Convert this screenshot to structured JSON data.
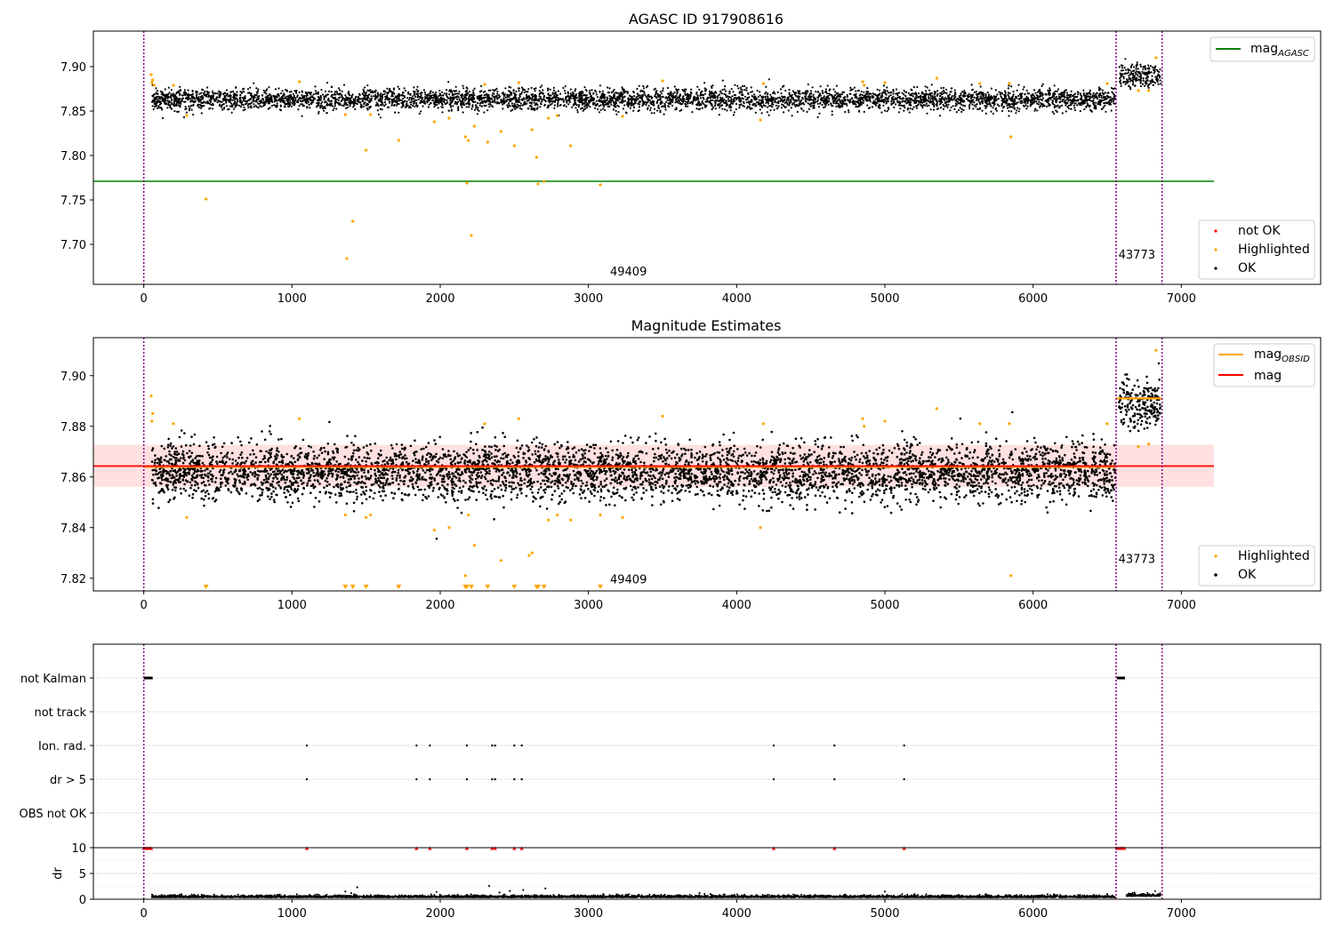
{
  "chart_data": [
    {
      "type": "scatter",
      "title": "AGASC ID 917908616",
      "xlim": [
        -340,
        7940
      ],
      "ylim": [
        7.655,
        7.94
      ],
      "xticks": [
        0,
        1000,
        2000,
        3000,
        4000,
        5000,
        6000,
        7000
      ],
      "yticks": [
        7.7,
        7.75,
        7.8,
        7.85,
        7.9
      ],
      "ytick_labels": [
        "7.70",
        "7.75",
        "7.80",
        "7.85",
        "7.90"
      ],
      "grid": false,
      "legend_upper": {
        "position": "top-right",
        "entries": [
          {
            "base": "mag",
            "sub": "AGASC",
            "color": "#008000"
          }
        ]
      },
      "legend_lower": {
        "position": "bottom-right",
        "entries": [
          {
            "label": "not OK",
            "color": "#ff0000"
          },
          {
            "label": "Highlighted",
            "color": "#ffa500"
          },
          {
            "label": "OK",
            "color": "#000000"
          }
        ]
      },
      "lines": [
        {
          "name": "mag_AGASC",
          "y": 7.771,
          "x": [
            -340,
            7220
          ],
          "color": "#008000"
        }
      ],
      "vlines": [
        0,
        6560,
        6870
      ],
      "obsid_labels": [
        {
          "text": "49409",
          "x": 3270,
          "y": 7.665
        },
        {
          "text": "43773",
          "x": 6700,
          "y": 7.684
        }
      ],
      "segments": [
        {
          "x": [
            55,
            6555
          ],
          "center": 7.863,
          "spread": 0.006,
          "trend": 0
        },
        {
          "x": [
            6580,
            6860
          ],
          "center": 7.889,
          "spread": 0.007,
          "trend": 0
        }
      ],
      "highlighted": [
        [
          50,
          7.891
        ],
        [
          55,
          7.882
        ],
        [
          60,
          7.885
        ],
        [
          70,
          7.879
        ],
        [
          200,
          7.879
        ],
        [
          290,
          7.845
        ],
        [
          420,
          7.751
        ],
        [
          1050,
          7.883
        ],
        [
          1360,
          7.846
        ],
        [
          1370,
          7.684
        ],
        [
          1410,
          7.726
        ],
        [
          1500,
          7.806
        ],
        [
          1530,
          7.846
        ],
        [
          1720,
          7.817
        ],
        [
          1960,
          7.838
        ],
        [
          2060,
          7.842
        ],
        [
          2170,
          7.821
        ],
        [
          2190,
          7.817
        ],
        [
          2180,
          7.769
        ],
        [
          2210,
          7.71
        ],
        [
          2230,
          7.833
        ],
        [
          2300,
          7.88
        ],
        [
          2320,
          7.815
        ],
        [
          2410,
          7.827
        ],
        [
          2500,
          7.811
        ],
        [
          2530,
          7.882
        ],
        [
          2620,
          7.829
        ],
        [
          2650,
          7.798
        ],
        [
          2660,
          7.768
        ],
        [
          2700,
          7.771
        ],
        [
          2730,
          7.842
        ],
        [
          2790,
          7.845
        ],
        [
          2880,
          7.811
        ],
        [
          3080,
          7.767
        ],
        [
          3230,
          7.844
        ],
        [
          3500,
          7.884
        ],
        [
          4160,
          7.84
        ],
        [
          4180,
          7.881
        ],
        [
          4850,
          7.883
        ],
        [
          4860,
          7.879
        ],
        [
          5000,
          7.882
        ],
        [
          5350,
          7.887
        ],
        [
          5640,
          7.881
        ],
        [
          5840,
          7.881
        ],
        [
          5850,
          7.821
        ],
        [
          6500,
          7.881
        ],
        [
          6710,
          7.873
        ],
        [
          6780,
          7.873
        ],
        [
          6830,
          7.91
        ]
      ]
    },
    {
      "type": "scatter",
      "title": "Magnitude Estimates",
      "xlim": [
        -340,
        7940
      ],
      "ylim": [
        7.815,
        7.915
      ],
      "xticks": [
        0,
        1000,
        2000,
        3000,
        4000,
        5000,
        6000,
        7000
      ],
      "yticks": [
        7.82,
        7.84,
        7.86,
        7.88,
        7.9
      ],
      "ytick_labels": [
        "7.82",
        "7.84",
        "7.86",
        "7.88",
        "7.90"
      ],
      "grid": false,
      "legend_upper": {
        "position": "top-right",
        "entries": [
          {
            "base": "mag",
            "sub": "OBSID",
            "color": "#ffa500"
          },
          {
            "base": "mag",
            "sub": "",
            "color": "#ff0000"
          }
        ]
      },
      "legend_lower": {
        "position": "bottom-right",
        "entries": [
          {
            "label": "Highlighted",
            "color": "#ffa500"
          },
          {
            "label": "OK",
            "color": "#000000"
          }
        ]
      },
      "mag_line": {
        "y": 7.8643,
        "x": [
          -340,
          7220
        ],
        "color": "#ff0000",
        "band": [
          7.8561,
          7.8727
        ]
      },
      "obsid_lines": [
        {
          "x": [
            0,
            6560
          ],
          "y": 7.864,
          "color": "#ffa500"
        },
        {
          "x": [
            6560,
            6870
          ],
          "y": 7.891,
          "color": "#ffa500"
        }
      ],
      "vlines": [
        0,
        6560,
        6870
      ],
      "obsid_labels": [
        {
          "text": "49409",
          "x": 3270,
          "y": 7.818
        },
        {
          "text": "43773",
          "x": 6700,
          "y": 7.826
        }
      ],
      "segments": [
        {
          "x": [
            55,
            6555
          ],
          "center": 7.862,
          "spread": 0.0055,
          "trend": 0
        },
        {
          "x": [
            6580,
            6860
          ],
          "center": 7.889,
          "spread": 0.0048,
          "trend": 0
        }
      ],
      "highlighted": [
        [
          50,
          7.892
        ],
        [
          55,
          7.882
        ],
        [
          60,
          7.885
        ],
        [
          200,
          7.881
        ],
        [
          290,
          7.844
        ],
        [
          1050,
          7.883
        ],
        [
          1360,
          7.845
        ],
        [
          1500,
          7.844
        ],
        [
          1530,
          7.845
        ],
        [
          1960,
          7.839
        ],
        [
          2060,
          7.84
        ],
        [
          2170,
          7.821
        ],
        [
          2190,
          7.845
        ],
        [
          2230,
          7.833
        ],
        [
          2300,
          7.881
        ],
        [
          2410,
          7.827
        ],
        [
          2530,
          7.883
        ],
        [
          2600,
          7.829
        ],
        [
          2620,
          7.83
        ],
        [
          2730,
          7.843
        ],
        [
          2790,
          7.845
        ],
        [
          2880,
          7.843
        ],
        [
          3080,
          7.845
        ],
        [
          3230,
          7.844
        ],
        [
          3500,
          7.884
        ],
        [
          4160,
          7.84
        ],
        [
          4180,
          7.881
        ],
        [
          4850,
          7.883
        ],
        [
          4860,
          7.88
        ],
        [
          5000,
          7.882
        ],
        [
          5350,
          7.887
        ],
        [
          5640,
          7.881
        ],
        [
          5840,
          7.881
        ],
        [
          5850,
          7.821
        ],
        [
          6500,
          7.881
        ],
        [
          6710,
          7.872
        ],
        [
          6780,
          7.873
        ],
        [
          6830,
          7.91
        ]
      ],
      "clipped_x": [
        420,
        1360,
        1410,
        1500,
        1720,
        2170,
        2180,
        2210,
        2320,
        2500,
        2650,
        2660,
        2700,
        3080
      ]
    },
    {
      "type": "scatter",
      "title": "",
      "xlim": [
        -340,
        7940
      ],
      "xticks": [
        0,
        1000,
        2000,
        3000,
        4000,
        5000,
        6000,
        7000
      ],
      "flag_rows": [
        "not Kalman",
        "not track",
        "Ion. rad.",
        "dr > 5",
        "OBS not OK"
      ],
      "grid": true,
      "vlines": [
        0,
        6560,
        6870
      ],
      "not_kalman_x": [
        [
          0,
          60
        ],
        [
          6565,
          6620
        ]
      ],
      "ion_rad_x": [
        1100,
        1840,
        1930,
        2180,
        2350,
        2370,
        2500,
        2550,
        4250,
        4660,
        5130
      ],
      "dr_gt5_x": [
        1100,
        1840,
        1930,
        2180,
        2350,
        2370,
        2500,
        2550,
        4250,
        4660,
        5130
      ]
    },
    {
      "type": "scatter",
      "title": "",
      "ylabel": "dr",
      "xlim": [
        -340,
        7940
      ],
      "ylim": [
        0,
        10
      ],
      "xticks": [
        0,
        1000,
        2000,
        3000,
        4000,
        5000,
        6000,
        7000
      ],
      "yticks": [
        0,
        5,
        10
      ],
      "ytick_labels": [
        "0",
        "5",
        "10"
      ],
      "grid": true,
      "vlines": [
        0,
        6560,
        6870
      ],
      "clipped_marker_x": [
        0,
        10,
        20,
        30,
        40,
        50,
        1100,
        1840,
        1930,
        2180,
        2350,
        2370,
        2500,
        2550,
        4250,
        4660,
        5130,
        6565,
        6575,
        6585,
        6595,
        6605,
        6615
      ],
      "outliers": [
        [
          1360,
          1.5
        ],
        [
          1400,
          1.2
        ],
        [
          1440,
          2.3
        ],
        [
          2330,
          2.6
        ],
        [
          2400,
          1.3
        ],
        [
          2470,
          1.6
        ],
        [
          2560,
          1.8
        ],
        [
          2710,
          2.1
        ],
        [
          3100,
          1.0
        ],
        [
          3750,
          1.2
        ],
        [
          5000,
          1.5
        ],
        [
          5200,
          1.0
        ],
        [
          6140,
          0.9
        ],
        [
          6500,
          1.0
        ]
      ],
      "segments": [
        {
          "x": [
            55,
            6555
          ],
          "center": 0.35,
          "spread": 0.22
        },
        {
          "x": [
            6630,
            6860
          ],
          "center": 0.6,
          "spread": 0.25
        }
      ]
    }
  ]
}
